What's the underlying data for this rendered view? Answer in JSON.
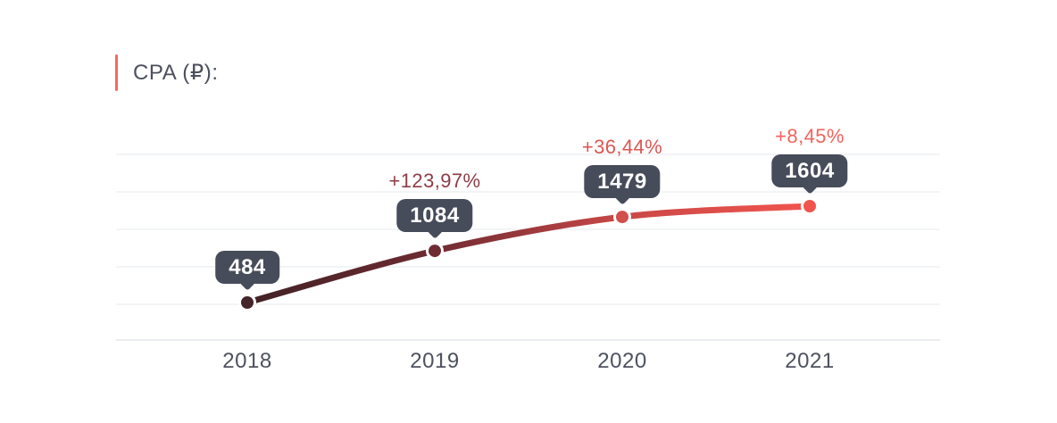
{
  "header": {
    "title": "CPA (₽):"
  },
  "colors": {
    "background": "#ffffff",
    "accent_bar": "#f4695f",
    "title_text": "#4b505d",
    "axis_label_text": "#4d5260",
    "gridline": "#eef0f3",
    "axis_line": "#e2e5ea",
    "badge_bg": "#474c5a",
    "badge_text": "#ffffff"
  },
  "chart_data": {
    "type": "line",
    "title": "CPA (₽):",
    "xlabel": "",
    "ylabel": "",
    "legend": "none",
    "grid": "horizontal",
    "x": [
      "2018",
      "2019",
      "2020",
      "2021"
    ],
    "values": [
      484,
      1084,
      1479,
      1604
    ],
    "percent_changes": [
      "",
      "+123,97%",
      "+36,44%",
      "+8,45%"
    ],
    "percent_colors": [
      "",
      "#8c3d47",
      "#dd5653",
      "#f2635c"
    ],
    "point_colors": [
      "#45242a",
      "#6f2b32",
      "#d14f4d",
      "#f1544e"
    ],
    "line_gradient_stops": [
      "#402125",
      "#6f2b32",
      "#c94847",
      "#f1544e"
    ],
    "point_halo_color": "#ffffff"
  }
}
